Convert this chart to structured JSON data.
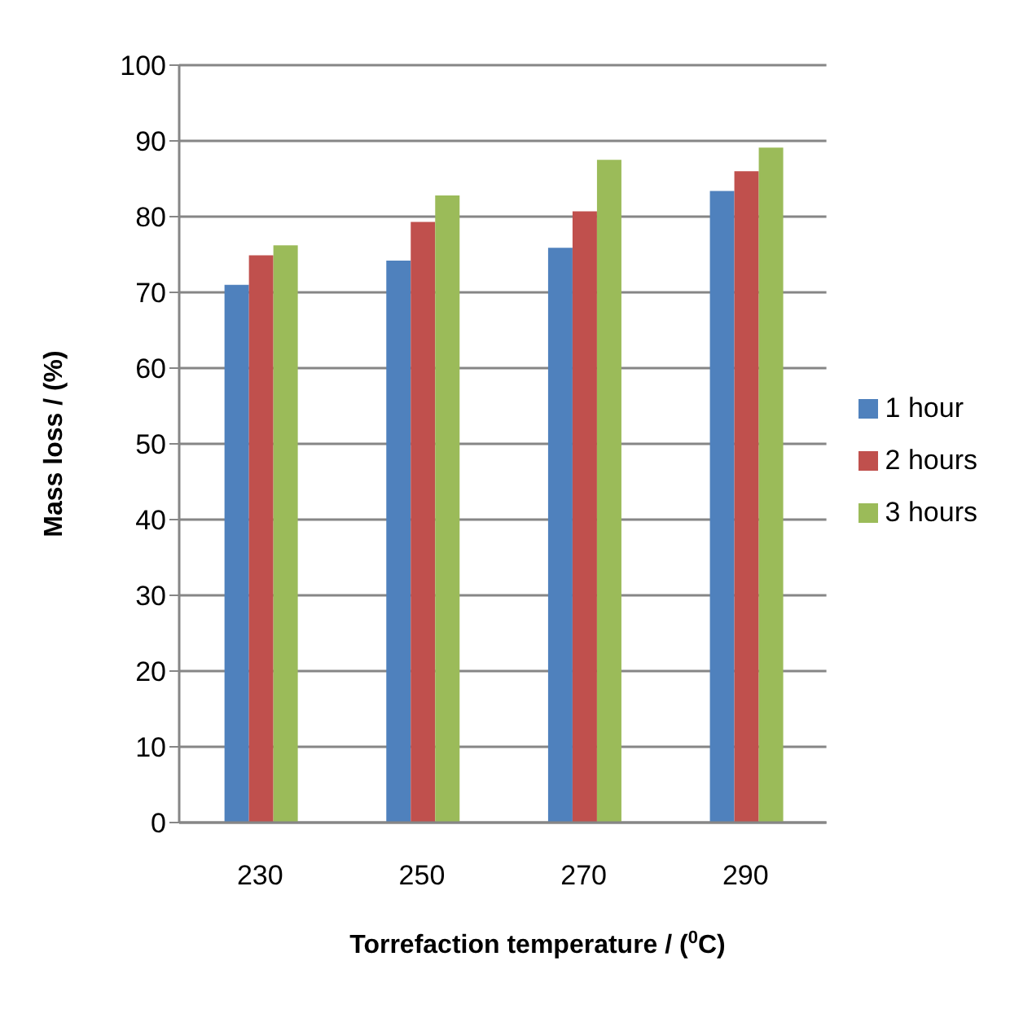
{
  "chart_data": {
    "type": "bar",
    "xlabel": "Torrefaction temperature / ($^{0}$C)",
    "ylabel": "Mass loss  / (%)",
    "categories": [
      "230",
      "250",
      "270",
      "290"
    ],
    "series": [
      {
        "name": "1 hour",
        "color": "#4f81bd",
        "values": [
          71.0,
          74.2,
          75.9,
          83.4
        ]
      },
      {
        "name": "2 hours",
        "color": "#c0504d",
        "values": [
          74.9,
          79.3,
          80.7,
          86.0
        ]
      },
      {
        "name": "3 hours",
        "color": "#9bbb59",
        "values": [
          76.2,
          82.8,
          87.5,
          89.1
        ]
      }
    ],
    "ylim": [
      0,
      100
    ],
    "yticks": [
      0,
      10,
      20,
      30,
      40,
      50,
      60,
      70,
      80,
      90,
      100
    ],
    "grid": "y",
    "legend": "right"
  }
}
